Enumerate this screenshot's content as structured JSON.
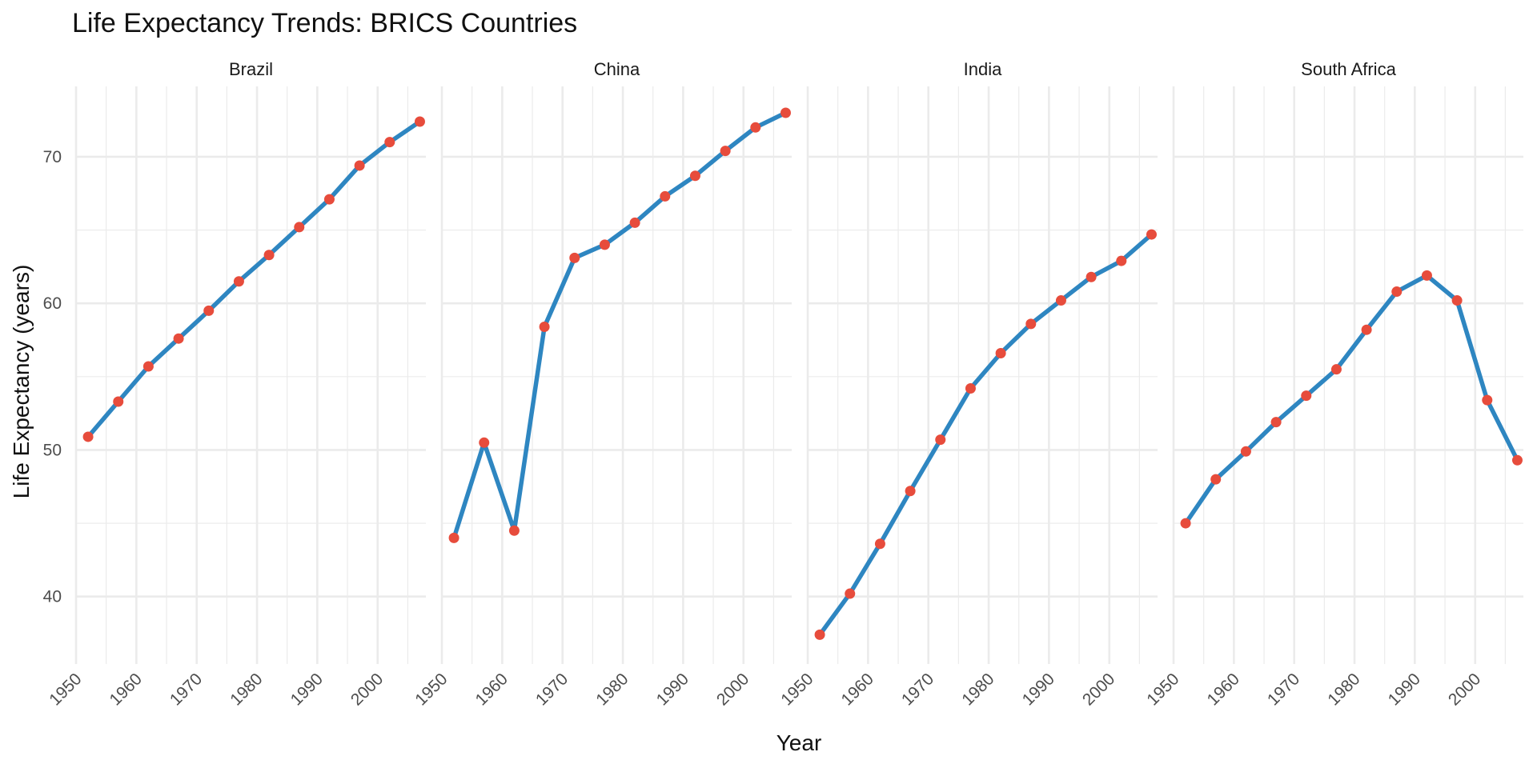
{
  "chart_data": {
    "type": "line",
    "title": "Life Expectancy Trends: BRICS Countries",
    "xlabel": "Year",
    "ylabel": "Life Expectancy (years)",
    "x": [
      1952,
      1957,
      1962,
      1967,
      1972,
      1977,
      1982,
      1987,
      1992,
      1997,
      2002,
      2007
    ],
    "x_ticks": [
      1950,
      1960,
      1970,
      1980,
      1990,
      2000
    ],
    "y_ticks": [
      40,
      50,
      60,
      70
    ],
    "xlim": [
      1950,
      2008
    ],
    "ylim": [
      35.4,
      74.8
    ],
    "grid": true,
    "colors": {
      "line": "#2E86C1",
      "point": "#E74C3C",
      "grid": "#EBEBEB"
    },
    "panels": [
      {
        "name": "Brazil",
        "values": [
          50.9,
          53.3,
          55.7,
          57.6,
          59.5,
          61.5,
          63.3,
          65.2,
          67.1,
          69.4,
          71.0,
          72.4
        ]
      },
      {
        "name": "China",
        "values": [
          44.0,
          50.5,
          44.5,
          58.4,
          63.1,
          64.0,
          65.5,
          67.3,
          68.7,
          70.4,
          72.0,
          73.0
        ]
      },
      {
        "name": "India",
        "values": [
          37.4,
          40.2,
          43.6,
          47.2,
          50.7,
          54.2,
          56.6,
          58.6,
          60.2,
          61.8,
          62.9,
          64.7
        ]
      },
      {
        "name": "South Africa",
        "values": [
          45.0,
          48.0,
          49.9,
          51.9,
          53.7,
          55.5,
          58.2,
          60.8,
          61.9,
          60.2,
          53.4,
          49.3
        ]
      }
    ]
  }
}
